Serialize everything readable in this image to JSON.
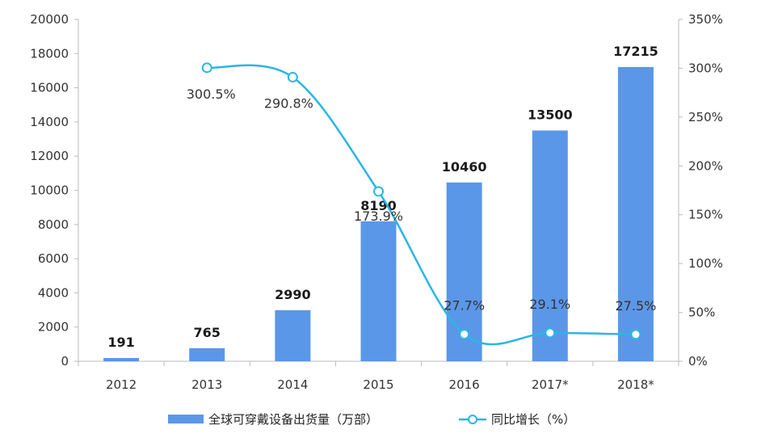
{
  "chart_data": {
    "type": "bar",
    "categories": [
      "2012",
      "2013",
      "2014",
      "2015",
      "2016",
      "2017*",
      "2018*"
    ],
    "series": [
      {
        "name": "全球可穿戴设备出货量（万部）",
        "type": "bar",
        "axis": "left",
        "values": [
          191,
          765,
          2990,
          8190,
          10460,
          13500,
          17215
        ],
        "labels": [
          "191",
          "765",
          "2990",
          "8190",
          "10460",
          "13500",
          "17215"
        ]
      },
      {
        "name": "同比增长（%）",
        "type": "line",
        "axis": "right",
        "values": [
          null,
          300.5,
          290.8,
          173.9,
          27.7,
          29.1,
          27.5
        ],
        "labels": [
          "",
          "300.5%",
          "290.8%",
          "173.9%",
          "27.7%",
          "29.1%",
          "27.5%"
        ]
      }
    ],
    "y_left": {
      "range": [
        0,
        20000
      ],
      "ticks": [
        "0",
        "2000",
        "4000",
        "6000",
        "8000",
        "10000",
        "12000",
        "14000",
        "16000",
        "18000",
        "20000"
      ]
    },
    "y_right": {
      "range": [
        0,
        350
      ],
      "ticks": [
        "0%",
        "50%",
        "100%",
        "150%",
        "200%",
        "250%",
        "300%",
        "350%"
      ]
    },
    "legend_position": "bottom",
    "grid": false,
    "colors": {
      "bar": "#5b97e8",
      "line": "#29b6e6",
      "marker_fill": "#ffffff"
    }
  }
}
